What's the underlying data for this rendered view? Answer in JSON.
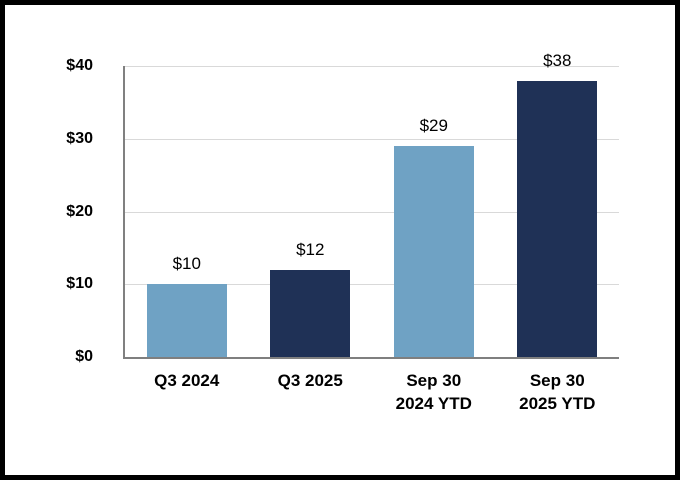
{
  "chart_data": {
    "type": "bar",
    "title": "",
    "xlabel": "",
    "ylabel": "",
    "categories": [
      "Q3 2024",
      "Q3 2025",
      "Sep 30\n2024 YTD",
      "Sep 30\n2025 YTD"
    ],
    "values": [
      10,
      12,
      29,
      38
    ],
    "data_labels": [
      "$10",
      "$12",
      "$29",
      "$38"
    ],
    "bar_colors": [
      "#6FA2C4",
      "#1F3156",
      "#6FA2C4",
      "#1F3156"
    ],
    "ylim": [
      0,
      40
    ],
    "yticks": [
      0,
      10,
      20,
      30,
      40
    ],
    "ytick_labels": [
      "$0",
      "$10",
      "$20",
      "$30",
      "$40"
    ],
    "grid": "horizontal",
    "legend": "none",
    "colors": {
      "light_blue": "#6FA2C4",
      "dark_navy": "#1F3156",
      "gridline": "#D9D9D9",
      "axis_line": "#808080",
      "text": "#000000",
      "frame_border": "#000000",
      "background": "#FFFFFF"
    }
  }
}
